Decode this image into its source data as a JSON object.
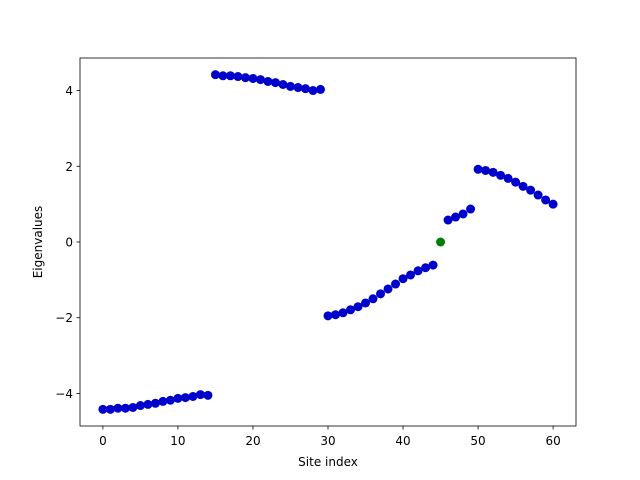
{
  "chart_data": {
    "type": "scatter",
    "xlabel": "Site index",
    "ylabel": "Eigenvalues",
    "xlim": [
      -3.05,
      63.05
    ],
    "ylim": [
      -4.86,
      4.86
    ],
    "xticks": [
      0,
      10,
      20,
      30,
      40,
      50,
      60
    ],
    "yticks": [
      {
        "value": -4,
        "label": "−4"
      },
      {
        "value": -2,
        "label": "−2"
      },
      0,
      2,
      4
    ],
    "grid": false,
    "series": [
      {
        "color": "#0000cc",
        "x": [
          0,
          1,
          2,
          3,
          4,
          5,
          6,
          7,
          8,
          9,
          10,
          11,
          12,
          13,
          14,
          15,
          16,
          17,
          18,
          19,
          20,
          21,
          22,
          23,
          24,
          25,
          26,
          27,
          28,
          29,
          30,
          31,
          32,
          33,
          34,
          35,
          36,
          37,
          38,
          39,
          40,
          41,
          42,
          43,
          44,
          46,
          47,
          48,
          49,
          50,
          51,
          52,
          53,
          54,
          55,
          56,
          57,
          58,
          59,
          60
        ],
        "values": [
          -4.42,
          -4.42,
          -4.39,
          -4.39,
          -4.37,
          -4.32,
          -4.29,
          -4.26,
          -4.21,
          -4.18,
          -4.13,
          -4.11,
          -4.08,
          -4.03,
          -4.05,
          4.42,
          4.39,
          4.39,
          4.37,
          4.34,
          4.32,
          4.29,
          4.24,
          4.21,
          4.16,
          4.11,
          4.08,
          4.05,
          4.0,
          4.03,
          -1.95,
          -1.92,
          -1.87,
          -1.79,
          -1.71,
          -1.61,
          -1.5,
          -1.37,
          -1.24,
          -1.11,
          -0.97,
          -0.87,
          -0.76,
          -0.68,
          -0.61,
          0.58,
          0.66,
          0.74,
          0.87,
          1.92,
          1.89,
          1.84,
          1.76,
          1.68,
          1.58,
          1.47,
          1.37,
          1.24,
          1.11,
          1.0
        ]
      },
      {
        "color": "#008000",
        "x": [
          45
        ],
        "values": [
          0
        ]
      }
    ]
  }
}
